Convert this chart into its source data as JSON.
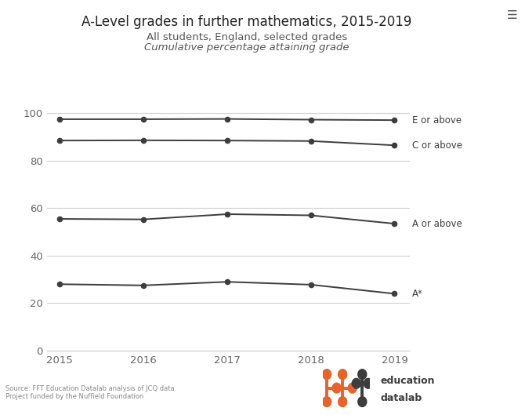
{
  "title": "A-Level grades in further mathematics, 2015-2019",
  "subtitle1": "All students, England, selected grades",
  "subtitle2": "Cumulative percentage attaining grade",
  "years": [
    2015,
    2016,
    2017,
    2018,
    2019
  ],
  "series": {
    "E or above": [
      97.5,
      97.5,
      97.6,
      97.3,
      97.1
    ],
    "C or above": [
      88.5,
      88.6,
      88.5,
      88.3,
      86.5
    ],
    "A or above": [
      55.5,
      55.3,
      57.5,
      57.0,
      53.5
    ],
    "A*": [
      28.0,
      27.5,
      29.0,
      27.8,
      24.0
    ]
  },
  "line_color": "#3d3d3d",
  "bg_color": "#ffffff",
  "grid_color": "#d0d0d0",
  "ylim": [
    0,
    104
  ],
  "yticks": [
    0,
    20,
    40,
    60,
    80,
    100
  ],
  "source_line1": "Source: FFT Education Datalab analysis of JCQ data",
  "source_line2": "Project funded by the Nuffield Foundation",
  "hamburger_color": "#555555",
  "orange_color": "#e8622a",
  "dark_color": "#3d3d3d"
}
